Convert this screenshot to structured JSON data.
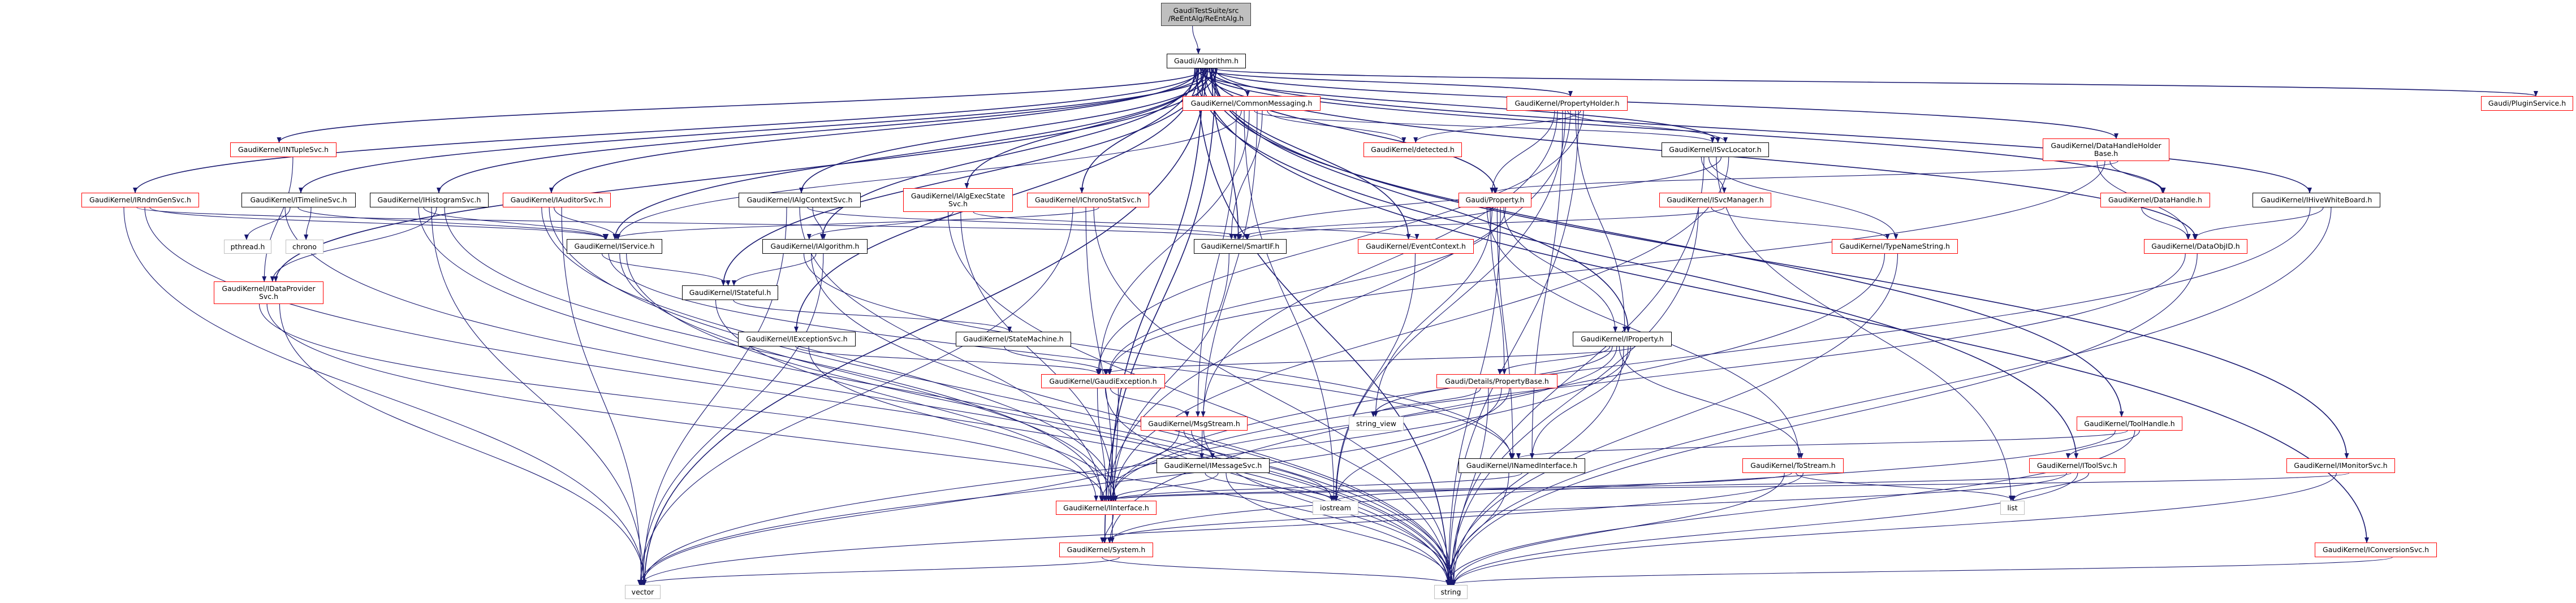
{
  "colors": {
    "edge": "#191970",
    "incomplete_border": "#ff0000",
    "normal_border": "#000000",
    "system_border": "#bfbfbf",
    "root_fill": "#bfbfbf"
  },
  "nodes": [
    {
      "id": "root",
      "label": "GaudiTestSuite/src\n/ReEntAlg/ReEntAlg.h",
      "style": "root"
    },
    {
      "id": "algorithm",
      "label": "Gaudi/Algorithm.h",
      "style": "black"
    },
    {
      "id": "commonmessaging",
      "label": "GaudiKernel/CommonMessaging.h",
      "style": "red"
    },
    {
      "id": "propertyholder",
      "label": "GaudiKernel/PropertyHolder.h",
      "style": "red"
    },
    {
      "id": "pluginservice",
      "label": "Gaudi/PluginService.h",
      "style": "red"
    },
    {
      "id": "ntuplesvc",
      "label": "GaudiKernel/INTupleSvc.h",
      "style": "red"
    },
    {
      "id": "detected",
      "label": "GaudiKernel/detected.h",
      "style": "red"
    },
    {
      "id": "svclocator",
      "label": "GaudiKernel/ISvcLocator.h",
      "style": "black"
    },
    {
      "id": "datahandleholderbase",
      "label": "GaudiKernel/DataHandleHolder\nBase.h",
      "style": "red"
    },
    {
      "id": "rndmgensvc",
      "label": "GaudiKernel/IRndmGenSvc.h",
      "style": "red"
    },
    {
      "id": "timelinesvc",
      "label": "GaudiKernel/ITimelineSvc.h",
      "style": "black"
    },
    {
      "id": "histogramsvc",
      "label": "GaudiKernel/IHistogramSvc.h",
      "style": "black"
    },
    {
      "id": "auditorsvc",
      "label": "GaudiKernel/IAuditorSvc.h",
      "style": "red"
    },
    {
      "id": "algcontextsvc",
      "label": "GaudiKernel/IAlgContextSvc.h",
      "style": "black"
    },
    {
      "id": "algexecstatesvc",
      "label": "GaudiKernel/IAlgExecState\nSvc.h",
      "style": "red"
    },
    {
      "id": "chronostatsvc",
      "label": "GaudiKernel/IChronoStatSvc.h",
      "style": "red"
    },
    {
      "id": "property",
      "label": "Gaudi/Property.h",
      "style": "red"
    },
    {
      "id": "svcmanager",
      "label": "GaudiKernel/ISvcManager.h",
      "style": "red"
    },
    {
      "id": "datahandle",
      "label": "GaudiKernel/DataHandle.h",
      "style": "red"
    },
    {
      "id": "hivewhiteboard",
      "label": "GaudiKernel/IHiveWhiteBoard.h",
      "style": "black"
    },
    {
      "id": "pthread",
      "label": "pthread.h",
      "style": "gray"
    },
    {
      "id": "chrono",
      "label": "chrono",
      "style": "gray"
    },
    {
      "id": "service",
      "label": "GaudiKernel/IService.h",
      "style": "black"
    },
    {
      "id": "ialgorithm",
      "label": "GaudiKernel/IAlgorithm.h",
      "style": "black"
    },
    {
      "id": "smartif",
      "label": "GaudiKernel/SmartIF.h",
      "style": "black"
    },
    {
      "id": "eventcontext",
      "label": "GaudiKernel/EventContext.h",
      "style": "red"
    },
    {
      "id": "typenamestring",
      "label": "GaudiKernel/TypeNameString.h",
      "style": "red"
    },
    {
      "id": "dataobjid",
      "label": "GaudiKernel/DataObjID.h",
      "style": "red"
    },
    {
      "id": "dataprovidersvc",
      "label": "GaudiKernel/IDataProvider\nSvc.h",
      "style": "red"
    },
    {
      "id": "stateful",
      "label": "GaudiKernel/IStateful.h",
      "style": "black"
    },
    {
      "id": "exceptionsvc",
      "label": "GaudiKernel/IExceptionSvc.h",
      "style": "black"
    },
    {
      "id": "statemachine",
      "label": "GaudiKernel/StateMachine.h",
      "style": "black"
    },
    {
      "id": "iproperty",
      "label": "GaudiKernel/IProperty.h",
      "style": "black"
    },
    {
      "id": "gaudiexception",
      "label": "GaudiKernel/GaudiException.h",
      "style": "red"
    },
    {
      "id": "propertybase",
      "label": "Gaudi/Details/PropertyBase.h",
      "style": "red"
    },
    {
      "id": "msgstream",
      "label": "GaudiKernel/MsgStream.h",
      "style": "red"
    },
    {
      "id": "stringview",
      "label": "string_view",
      "style": "gray"
    },
    {
      "id": "toolhandle",
      "label": "GaudiKernel/ToolHandle.h",
      "style": "red"
    },
    {
      "id": "messagesvc",
      "label": "GaudiKernel/IMessageSvc.h",
      "style": "black"
    },
    {
      "id": "namedinterface",
      "label": "GaudiKernel/INamedInterface.h",
      "style": "black"
    },
    {
      "id": "tostream",
      "label": "GaudiKernel/ToStream.h",
      "style": "red"
    },
    {
      "id": "toolsvc",
      "label": "GaudiKernel/IToolSvc.h",
      "style": "red"
    },
    {
      "id": "monitorsvc",
      "label": "GaudiKernel/IMonitorSvc.h",
      "style": "red"
    },
    {
      "id": "interface",
      "label": "GaudiKernel/IInterface.h",
      "style": "red"
    },
    {
      "id": "iostream",
      "label": "iostream",
      "style": "gray"
    },
    {
      "id": "list",
      "label": "list",
      "style": "gray"
    },
    {
      "id": "system",
      "label": "GaudiKernel/System.h",
      "style": "red"
    },
    {
      "id": "conversionsvc",
      "label": "GaudiKernel/IConversionSvc.h",
      "style": "red"
    },
    {
      "id": "vector",
      "label": "vector",
      "style": "gray"
    },
    {
      "id": "string",
      "label": "string",
      "style": "gray"
    }
  ],
  "edges": [
    [
      "root",
      "algorithm"
    ],
    [
      "algorithm",
      "commonmessaging"
    ],
    [
      "algorithm",
      "propertyholder"
    ],
    [
      "algorithm",
      "pluginservice"
    ],
    [
      "algorithm",
      "ntuplesvc"
    ],
    [
      "algorithm",
      "svclocator"
    ],
    [
      "algorithm",
      "datahandleholderbase"
    ],
    [
      "algorithm",
      "rndmgensvc"
    ],
    [
      "algorithm",
      "timelinesvc"
    ],
    [
      "algorithm",
      "histogramsvc"
    ],
    [
      "algorithm",
      "auditorsvc"
    ],
    [
      "algorithm",
      "algcontextsvc"
    ],
    [
      "algorithm",
      "algexecstatesvc"
    ],
    [
      "algorithm",
      "chronostatsvc"
    ],
    [
      "algorithm",
      "property"
    ],
    [
      "algorithm",
      "datahandle"
    ],
    [
      "algorithm",
      "hivewhiteboard"
    ],
    [
      "algorithm",
      "service"
    ],
    [
      "algorithm",
      "ialgorithm"
    ],
    [
      "algorithm",
      "eventcontext"
    ],
    [
      "algorithm",
      "dataobjid"
    ],
    [
      "algorithm",
      "dataprovidersvc"
    ],
    [
      "algorithm",
      "stateful"
    ],
    [
      "algorithm",
      "exceptionsvc"
    ],
    [
      "algorithm",
      "iproperty"
    ],
    [
      "algorithm",
      "toolhandle"
    ],
    [
      "algorithm",
      "toolsvc"
    ],
    [
      "algorithm",
      "monitorsvc"
    ],
    [
      "algorithm",
      "conversionsvc"
    ],
    [
      "algorithm",
      "system"
    ],
    [
      "algorithm",
      "vector"
    ],
    [
      "algorithm",
      "string"
    ],
    [
      "algorithm",
      "smartif"
    ],
    [
      "algorithm",
      "interface"
    ],
    [
      "commonmessaging",
      "detected"
    ],
    [
      "commonmessaging",
      "svclocator"
    ],
    [
      "commonmessaging",
      "service"
    ],
    [
      "commonmessaging",
      "smartif"
    ],
    [
      "commonmessaging",
      "gaudiexception"
    ],
    [
      "commonmessaging",
      "msgstream"
    ],
    [
      "commonmessaging",
      "messagesvc"
    ],
    [
      "commonmessaging",
      "iostream"
    ],
    [
      "propertyholder",
      "detected"
    ],
    [
      "propertyholder",
      "svclocator"
    ],
    [
      "propertyholder",
      "property"
    ],
    [
      "propertyholder",
      "iproperty"
    ],
    [
      "propertyholder",
      "namedinterface"
    ],
    [
      "propertyholder",
      "gaudiexception"
    ],
    [
      "propertyholder",
      "interface"
    ],
    [
      "propertyholder",
      "msgstream"
    ],
    [
      "propertyholder",
      "string"
    ],
    [
      "propertyholder",
      "iostream"
    ],
    [
      "svclocator",
      "svcmanager"
    ],
    [
      "svclocator",
      "smartif"
    ],
    [
      "svclocator",
      "typenamestring"
    ],
    [
      "svclocator",
      "interface"
    ],
    [
      "svclocator",
      "list"
    ],
    [
      "svclocator",
      "string"
    ],
    [
      "svcmanager",
      "smartif"
    ],
    [
      "svcmanager",
      "typenamestring"
    ],
    [
      "svcmanager",
      "string"
    ],
    [
      "datahandleholderbase",
      "datahandle"
    ],
    [
      "datahandleholderbase",
      "dataobjid"
    ],
    [
      "datahandleholderbase",
      "property"
    ],
    [
      "datahandleholderbase",
      "gaudiexception"
    ],
    [
      "datahandle",
      "dataobjid"
    ],
    [
      "hivewhiteboard",
      "dataobjid"
    ],
    [
      "hivewhiteboard",
      "interface"
    ],
    [
      "hivewhiteboard",
      "string"
    ],
    [
      "dataobjid",
      "string"
    ],
    [
      "dataobjid",
      "interface"
    ],
    [
      "rndmgensvc",
      "service"
    ],
    [
      "rndmgensvc",
      "smartif"
    ],
    [
      "rndmgensvc",
      "vector"
    ],
    [
      "rndmgensvc",
      "string"
    ],
    [
      "timelinesvc",
      "pthread"
    ],
    [
      "timelinesvc",
      "chrono"
    ],
    [
      "timelinesvc",
      "service"
    ],
    [
      "timelinesvc",
      "string"
    ],
    [
      "histogramsvc",
      "dataprovidersvc"
    ],
    [
      "histogramsvc",
      "service"
    ],
    [
      "histogramsvc",
      "interface"
    ],
    [
      "histogramsvc",
      "vector"
    ],
    [
      "histogramsvc",
      "string"
    ],
    [
      "ntuplesvc",
      "dataprovidersvc"
    ],
    [
      "auditorsvc",
      "service"
    ],
    [
      "auditorsvc",
      "interface"
    ],
    [
      "auditorsvc",
      "vector"
    ],
    [
      "auditorsvc",
      "string"
    ],
    [
      "algcontextsvc",
      "ialgorithm"
    ],
    [
      "algcontextsvc",
      "interface"
    ],
    [
      "algcontextsvc",
      "vector"
    ],
    [
      "algcontextsvc",
      "smartif"
    ],
    [
      "algexecstatesvc",
      "ialgorithm"
    ],
    [
      "algexecstatesvc",
      "eventcontext"
    ],
    [
      "algexecstatesvc",
      "interface"
    ],
    [
      "algexecstatesvc",
      "string"
    ],
    [
      "chronostatsvc",
      "service"
    ],
    [
      "chronostatsvc",
      "interface"
    ],
    [
      "chronostatsvc",
      "vector"
    ],
    [
      "chronostatsvc",
      "string"
    ],
    [
      "property",
      "propertybase"
    ],
    [
      "property",
      "iproperty"
    ],
    [
      "property",
      "smartif"
    ],
    [
      "property",
      "tostream"
    ],
    [
      "property",
      "string"
    ],
    [
      "property",
      "stringview"
    ],
    [
      "property",
      "gaudiexception"
    ],
    [
      "property",
      "namedinterface"
    ],
    [
      "dataprovidersvc",
      "interface"
    ],
    [
      "dataprovidersvc",
      "vector"
    ],
    [
      "dataprovidersvc",
      "string"
    ],
    [
      "service",
      "stateful"
    ],
    [
      "service",
      "interface"
    ],
    [
      "service",
      "namedinterface"
    ],
    [
      "service",
      "string"
    ],
    [
      "ialgorithm",
      "stateful"
    ],
    [
      "ialgorithm",
      "namedinterface"
    ],
    [
      "ialgorithm",
      "vector"
    ],
    [
      "ialgorithm",
      "string"
    ],
    [
      "stateful",
      "interface"
    ],
    [
      "stateful",
      "statemachine"
    ],
    [
      "statemachine",
      "gaudiexception"
    ],
    [
      "exceptionsvc",
      "interface"
    ],
    [
      "exceptionsvc",
      "gaudiexception"
    ],
    [
      "iproperty",
      "propertybase"
    ],
    [
      "iproperty",
      "namedinterface"
    ],
    [
      "iproperty",
      "interface"
    ],
    [
      "iproperty",
      "gaudiexception"
    ],
    [
      "iproperty",
      "string"
    ],
    [
      "iproperty",
      "stringview"
    ],
    [
      "iproperty",
      "vector"
    ],
    [
      "iproperty",
      "tostream"
    ],
    [
      "propertybase",
      "stringview"
    ],
    [
      "propertybase",
      "iostream"
    ],
    [
      "propertybase",
      "string"
    ],
    [
      "propertybase",
      "vector"
    ],
    [
      "eventcontext",
      "iostream"
    ],
    [
      "smartif",
      "interface"
    ],
    [
      "gaudiexception",
      "msgstream"
    ],
    [
      "gaudiexception",
      "interface"
    ],
    [
      "gaudiexception",
      "system"
    ],
    [
      "gaudiexception",
      "string"
    ],
    [
      "msgstream",
      "messagesvc"
    ],
    [
      "msgstream",
      "string"
    ],
    [
      "msgstream",
      "iostream"
    ],
    [
      "msgstream",
      "vector"
    ],
    [
      "messagesvc",
      "interface"
    ],
    [
      "messagesvc",
      "iostream"
    ],
    [
      "messagesvc",
      "string"
    ],
    [
      "namedinterface",
      "interface"
    ],
    [
      "namedinterface",
      "string"
    ],
    [
      "interface",
      "system"
    ],
    [
      "system",
      "string"
    ],
    [
      "system",
      "vector"
    ],
    [
      "typenamestring",
      "string"
    ],
    [
      "typenamestring",
      "system"
    ],
    [
      "toolhandle",
      "toolsvc"
    ],
    [
      "toolhandle",
      "namedinterface"
    ],
    [
      "toolhandle",
      "system"
    ],
    [
      "toolhandle",
      "string"
    ],
    [
      "toolsvc",
      "interface"
    ],
    [
      "toolsvc",
      "list"
    ],
    [
      "toolsvc",
      "string"
    ],
    [
      "toolsvc",
      "system"
    ],
    [
      "monitorsvc",
      "interface"
    ],
    [
      "monitorsvc",
      "string"
    ],
    [
      "conversionsvc",
      "string"
    ],
    [
      "tostream",
      "list"
    ],
    [
      "tostream",
      "string"
    ],
    [
      "tostream",
      "vector"
    ],
    [
      "tostream",
      "iostream"
    ]
  ]
}
